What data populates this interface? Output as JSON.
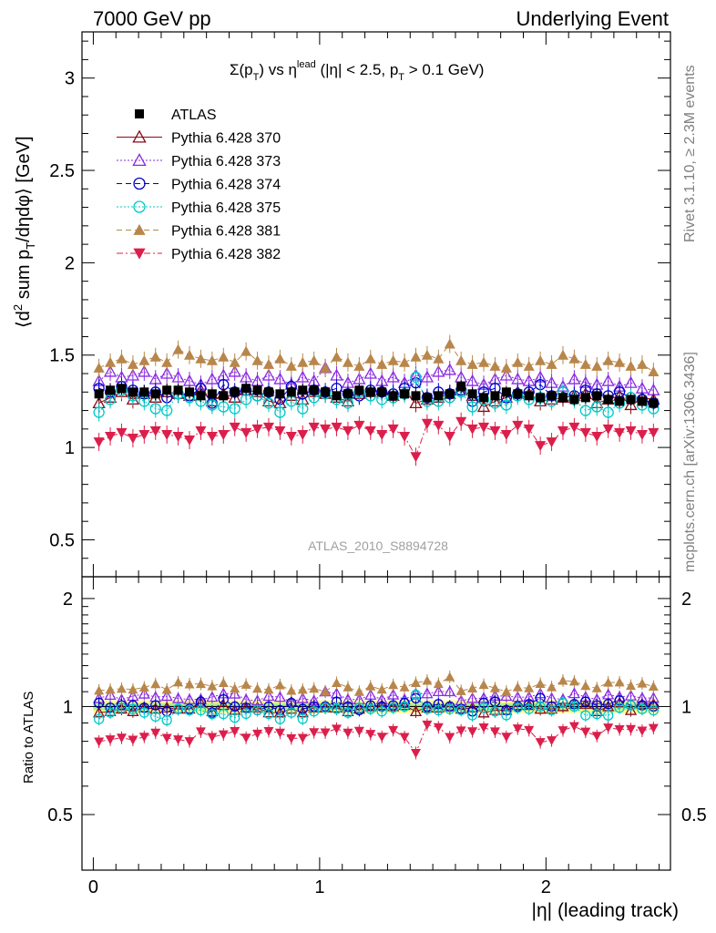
{
  "header": {
    "left": "7000 GeV pp",
    "right": "Underlying Event"
  },
  "side_labels": {
    "rivet": "Rivet 3.1.10, ≥ 2.3M events",
    "mcplots": "mcplots.cern.ch [arXiv:1306.3436]"
  },
  "watermark": "ATLAS_2010_S8894728",
  "chart_data": [
    {
      "type": "scatter",
      "title_parts": {
        "sigma": "Σ(p",
        "sub": "T",
        "mid": ") vs η",
        "sup": "lead",
        "rest1": " (|η| < 2.5, p",
        "sub2": "T",
        "rest2": " > 0.1 GeV)"
      },
      "ylabel_parts": {
        "a": "⟨d",
        "sup": "2",
        "b": " sum p",
        "sub": "T",
        "c": "/dηdφ⟩ [GeV]"
      },
      "xlim": [
        -0.05,
        2.55
      ],
      "ylim": [
        0.3,
        3.25
      ],
      "yticks": [
        0.5,
        1,
        1.5,
        2,
        2.5,
        3
      ],
      "ytick_labels": [
        "0.5",
        "1",
        "1.5",
        "2",
        "2.5",
        "3"
      ],
      "legend_position": "top-left",
      "x": [
        0.025,
        0.075,
        0.125,
        0.175,
        0.225,
        0.275,
        0.325,
        0.375,
        0.425,
        0.475,
        0.525,
        0.575,
        0.625,
        0.675,
        0.725,
        0.775,
        0.825,
        0.875,
        0.925,
        0.975,
        1.025,
        1.075,
        1.125,
        1.175,
        1.225,
        1.275,
        1.325,
        1.375,
        1.425,
        1.475,
        1.525,
        1.575,
        1.625,
        1.675,
        1.725,
        1.775,
        1.825,
        1.875,
        1.925,
        1.975,
        2.025,
        2.075,
        2.125,
        2.175,
        2.225,
        2.275,
        2.325,
        2.375,
        2.425,
        2.475
      ],
      "series": [
        {
          "name": "ATLAS",
          "color": "#000000",
          "marker": "square-filled",
          "line": "none",
          "values": [
            1.29,
            1.31,
            1.32,
            1.3,
            1.3,
            1.29,
            1.31,
            1.31,
            1.3,
            1.28,
            1.29,
            1.28,
            1.3,
            1.32,
            1.31,
            1.3,
            1.29,
            1.3,
            1.31,
            1.31,
            1.3,
            1.28,
            1.29,
            1.31,
            1.3,
            1.3,
            1.28,
            1.29,
            1.28,
            1.27,
            1.28,
            1.29,
            1.33,
            1.29,
            1.27,
            1.28,
            1.3,
            1.29,
            1.28,
            1.27,
            1.28,
            1.27,
            1.26,
            1.27,
            1.28,
            1.26,
            1.25,
            1.26,
            1.25,
            1.24
          ]
        },
        {
          "name": "Pythia 6.428 370",
          "color": "#8b0a1a",
          "marker": "triangle-open",
          "line": "solid",
          "values": [
            1.24,
            1.27,
            1.3,
            1.26,
            1.29,
            1.27,
            1.3,
            1.29,
            1.28,
            1.31,
            1.25,
            1.29,
            1.27,
            1.31,
            1.3,
            1.25,
            1.24,
            1.28,
            1.26,
            1.3,
            1.29,
            1.27,
            1.25,
            1.29,
            1.3,
            1.31,
            1.28,
            1.3,
            1.24,
            1.26,
            1.27,
            1.29,
            1.31,
            1.28,
            1.22,
            1.25,
            1.27,
            1.3,
            1.29,
            1.25,
            1.26,
            1.27,
            1.28,
            1.29,
            1.24,
            1.26,
            1.28,
            1.23,
            1.27,
            1.26
          ]
        },
        {
          "name": "Pythia 6.428 373",
          "color": "#8a2be2",
          "marker": "triangle-open",
          "line": "dotted",
          "values": [
            1.36,
            1.41,
            1.38,
            1.39,
            1.41,
            1.37,
            1.4,
            1.38,
            1.36,
            1.34,
            1.37,
            1.39,
            1.41,
            1.38,
            1.36,
            1.39,
            1.37,
            1.34,
            1.38,
            1.36,
            1.43,
            1.39,
            1.35,
            1.37,
            1.4,
            1.36,
            1.38,
            1.35,
            1.39,
            1.38,
            1.41,
            1.42,
            1.38,
            1.36,
            1.34,
            1.37,
            1.39,
            1.37,
            1.36,
            1.38,
            1.35,
            1.33,
            1.37,
            1.35,
            1.34,
            1.36,
            1.33,
            1.35,
            1.32,
            1.31
          ]
        },
        {
          "name": "Pythia 6.428 374",
          "color": "#0000cd",
          "marker": "circle-open",
          "line": "dashed",
          "values": [
            1.32,
            1.3,
            1.33,
            1.31,
            1.29,
            1.3,
            1.27,
            1.29,
            1.28,
            1.32,
            1.24,
            1.34,
            1.3,
            1.31,
            1.28,
            1.3,
            1.26,
            1.33,
            1.29,
            1.31,
            1.3,
            1.32,
            1.29,
            1.28,
            1.31,
            1.3,
            1.29,
            1.32,
            1.35,
            1.27,
            1.3,
            1.29,
            1.31,
            1.25,
            1.3,
            1.32,
            1.27,
            1.29,
            1.3,
            1.34,
            1.28,
            1.3,
            1.28,
            1.31,
            1.29,
            1.28,
            1.3,
            1.27,
            1.26,
            1.24
          ]
        },
        {
          "name": "Pythia 6.428 375",
          "color": "#00c8c8",
          "marker": "circle-open",
          "line": "dotted",
          "values": [
            1.19,
            1.26,
            1.31,
            1.28,
            1.25,
            1.21,
            1.2,
            1.29,
            1.27,
            1.25,
            1.23,
            1.22,
            1.21,
            1.26,
            1.28,
            1.24,
            1.19,
            1.25,
            1.21,
            1.27,
            1.29,
            1.26,
            1.24,
            1.3,
            1.28,
            1.26,
            1.27,
            1.29,
            1.38,
            1.25,
            1.25,
            1.27,
            1.3,
            1.22,
            1.26,
            1.24,
            1.23,
            1.28,
            1.26,
            1.27,
            1.25,
            1.3,
            1.26,
            1.2,
            1.22,
            1.19,
            1.24,
            1.27,
            1.23,
            1.21
          ]
        },
        {
          "name": "Pythia 6.428 381",
          "color": "#b8864b",
          "marker": "triangle-filled",
          "line": "dashed",
          "values": [
            1.43,
            1.46,
            1.48,
            1.45,
            1.47,
            1.49,
            1.46,
            1.53,
            1.5,
            1.48,
            1.47,
            1.49,
            1.46,
            1.52,
            1.47,
            1.45,
            1.48,
            1.44,
            1.46,
            1.47,
            1.43,
            1.49,
            1.46,
            1.44,
            1.48,
            1.45,
            1.47,
            1.46,
            1.49,
            1.5,
            1.48,
            1.56,
            1.47,
            1.45,
            1.46,
            1.44,
            1.43,
            1.46,
            1.44,
            1.47,
            1.45,
            1.5,
            1.48,
            1.45,
            1.44,
            1.47,
            1.46,
            1.44,
            1.45,
            1.41
          ]
        },
        {
          "name": "Pythia 6.428 382",
          "color": "#dc1e4b",
          "marker": "triangle-down-filled",
          "line": "dashdot",
          "values": [
            1.03,
            1.06,
            1.08,
            1.05,
            1.07,
            1.09,
            1.07,
            1.06,
            1.04,
            1.09,
            1.06,
            1.07,
            1.11,
            1.08,
            1.1,
            1.11,
            1.09,
            1.06,
            1.07,
            1.11,
            1.1,
            1.11,
            1.09,
            1.12,
            1.09,
            1.07,
            1.1,
            1.06,
            0.95,
            1.13,
            1.12,
            1.06,
            1.14,
            1.1,
            1.11,
            1.09,
            1.07,
            1.12,
            1.1,
            1.01,
            1.03,
            1.09,
            1.11,
            1.08,
            1.06,
            1.1,
            1.08,
            1.09,
            1.07,
            1.08
          ]
        }
      ]
    },
    {
      "type": "scatter",
      "ylabel": "Ratio to ATLAS",
      "xlabel": "|η| (leading track)",
      "xlim": [
        -0.05,
        2.55
      ],
      "ylim": [
        0.35,
        2.3
      ],
      "yticks": [
        0.5,
        1,
        2
      ],
      "ytick_labels": [
        "0.5",
        "1",
        "2"
      ],
      "xticks": [
        0,
        1,
        2
      ],
      "xtick_labels": [
        "0",
        "1",
        "2"
      ],
      "reference": 1.0,
      "band_halfwidth": 0.04
    }
  ]
}
